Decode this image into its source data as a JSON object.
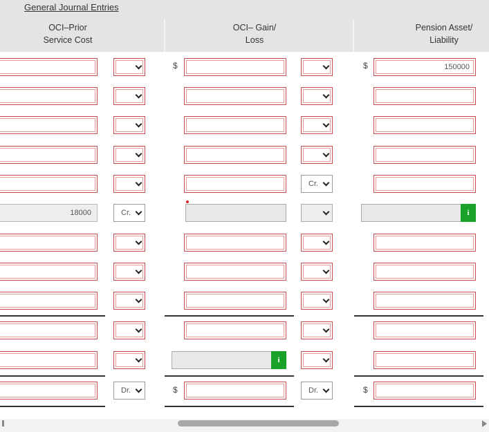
{
  "tab": {
    "label": "General Journal Entries"
  },
  "columns": {
    "oci_prior": {
      "line1": "OCI–Prior",
      "line2": "Service Cost"
    },
    "oci_gain": {
      "line1": "OCI– Gain/",
      "line2": "Loss"
    },
    "pension": {
      "line1": "Pension Asset/",
      "line2": "Liability"
    }
  },
  "symbols": {
    "dollar": "$",
    "info": "i"
  },
  "values": {
    "pension_row1": "150000",
    "prior_row6": "18000",
    "sel_cr": "Cr.",
    "sel_dr": "Dr."
  },
  "icons": {
    "dropdown": "chevron-down-icon",
    "info": "info-icon"
  },
  "colors": {
    "invalid_border": "#c94b4b",
    "info_green": "#1aa12a",
    "header_bg": "#e4e4e4"
  }
}
